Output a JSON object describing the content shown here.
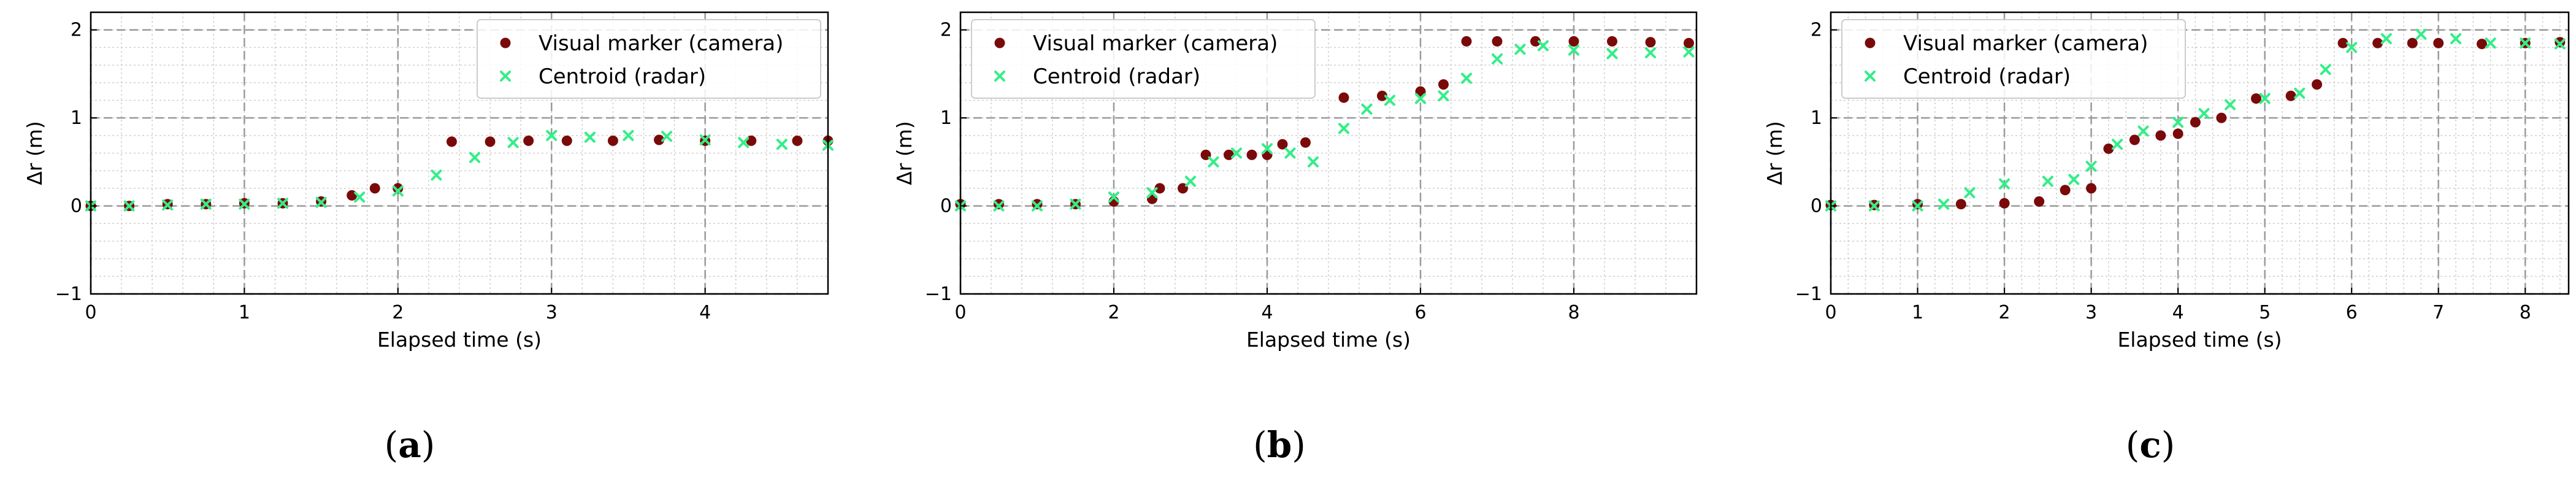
{
  "figure": {
    "colors": {
      "camera": "#7a0a0a",
      "radar": "#33ee88",
      "major_grid": "#9a9a9a",
      "minor_grid": "#cfcfcf"
    },
    "legend": {
      "camera_label": "Visual marker (camera)",
      "radar_label": "Centroid (radar)",
      "placement": "top-right"
    }
  },
  "chart_data": [
    {
      "type": "scatter",
      "caption": "a",
      "xlabel": "Elapsed time (s)",
      "ylabel": "Δr (m)",
      "xlim": [
        0,
        4.8
      ],
      "ylim": [
        -1,
        2.2
      ],
      "xticks": [
        0,
        1,
        2,
        3,
        4
      ],
      "yticks": [
        -1,
        0,
        1,
        2
      ],
      "grid": true,
      "legend_position": "top-right",
      "series": [
        {
          "name": "Visual marker (camera)",
          "marker": "circle",
          "points": [
            [
              0,
              0
            ],
            [
              0.25,
              0
            ],
            [
              0.5,
              0.02
            ],
            [
              0.75,
              0.02
            ],
            [
              1.0,
              0.03
            ],
            [
              1.25,
              0.03
            ],
            [
              1.5,
              0.05
            ],
            [
              1.7,
              0.12
            ],
            [
              1.85,
              0.2
            ],
            [
              2.0,
              0.2
            ],
            [
              2.35,
              0.73
            ],
            [
              2.6,
              0.73
            ],
            [
              2.85,
              0.74
            ],
            [
              3.1,
              0.74
            ],
            [
              3.4,
              0.74
            ],
            [
              3.7,
              0.75
            ],
            [
              4.0,
              0.74
            ],
            [
              4.3,
              0.74
            ],
            [
              4.6,
              0.74
            ],
            [
              4.8,
              0.74
            ]
          ]
        },
        {
          "name": "Centroid (radar)",
          "marker": "x",
          "points": [
            [
              0,
              0
            ],
            [
              0.25,
              0
            ],
            [
              0.5,
              0.01
            ],
            [
              0.75,
              0.02
            ],
            [
              1.0,
              0.02
            ],
            [
              1.25,
              0.03
            ],
            [
              1.5,
              0.04
            ],
            [
              1.75,
              0.1
            ],
            [
              2.0,
              0.17
            ],
            [
              2.25,
              0.35
            ],
            [
              2.5,
              0.55
            ],
            [
              2.75,
              0.72
            ],
            [
              3.0,
              0.8
            ],
            [
              3.25,
              0.78
            ],
            [
              3.5,
              0.8
            ],
            [
              3.75,
              0.79
            ],
            [
              4.0,
              0.75
            ],
            [
              4.25,
              0.72
            ],
            [
              4.5,
              0.7
            ],
            [
              4.8,
              0.69
            ]
          ]
        }
      ]
    },
    {
      "type": "scatter",
      "caption": "b",
      "xlabel": "Elapsed time (s)",
      "ylabel": "Δr (m)",
      "xlim": [
        0,
        9.6
      ],
      "ylim": [
        -1,
        2.2
      ],
      "xticks": [
        0,
        2,
        4,
        6,
        8
      ],
      "yticks": [
        -1,
        0,
        1,
        2
      ],
      "grid": true,
      "legend_position": "top-left",
      "series": [
        {
          "name": "Visual marker (camera)",
          "marker": "circle",
          "points": [
            [
              0,
              0.02
            ],
            [
              0.5,
              0.02
            ],
            [
              1.0,
              0.02
            ],
            [
              1.5,
              0.02
            ],
            [
              2.0,
              0.05
            ],
            [
              2.5,
              0.08
            ],
            [
              2.6,
              0.2
            ],
            [
              2.9,
              0.2
            ],
            [
              3.2,
              0.58
            ],
            [
              3.5,
              0.58
            ],
            [
              3.8,
              0.58
            ],
            [
              4.0,
              0.58
            ],
            [
              4.2,
              0.7
            ],
            [
              4.5,
              0.72
            ],
            [
              5.0,
              1.23
            ],
            [
              5.5,
              1.25
            ],
            [
              6.0,
              1.3
            ],
            [
              6.3,
              1.38
            ],
            [
              6.6,
              1.87
            ],
            [
              7.0,
              1.87
            ],
            [
              7.5,
              1.87
            ],
            [
              8.0,
              1.87
            ],
            [
              8.5,
              1.87
            ],
            [
              9.0,
              1.86
            ],
            [
              9.5,
              1.85
            ]
          ]
        },
        {
          "name": "Centroid (radar)",
          "marker": "x",
          "points": [
            [
              0,
              0
            ],
            [
              0.5,
              0
            ],
            [
              1.0,
              0
            ],
            [
              1.5,
              0.02
            ],
            [
              2.0,
              0.1
            ],
            [
              2.5,
              0.15
            ],
            [
              3.0,
              0.28
            ],
            [
              3.3,
              0.5
            ],
            [
              3.6,
              0.6
            ],
            [
              4.0,
              0.65
            ],
            [
              4.3,
              0.6
            ],
            [
              4.6,
              0.5
            ],
            [
              5.0,
              0.88
            ],
            [
              5.3,
              1.1
            ],
            [
              5.6,
              1.2
            ],
            [
              6.0,
              1.22
            ],
            [
              6.3,
              1.25
            ],
            [
              6.6,
              1.45
            ],
            [
              7.0,
              1.67
            ],
            [
              7.3,
              1.78
            ],
            [
              7.6,
              1.82
            ],
            [
              8.0,
              1.77
            ],
            [
              8.5,
              1.73
            ],
            [
              9.0,
              1.74
            ],
            [
              9.5,
              1.75
            ]
          ]
        }
      ]
    },
    {
      "type": "scatter",
      "caption": "c",
      "xlabel": "Elapsed time (s)",
      "ylabel": "Δr (m)",
      "xlim": [
        0,
        8.5
      ],
      "ylim": [
        -1,
        2.2
      ],
      "xticks": [
        0,
        1,
        2,
        3,
        4,
        5,
        6,
        7,
        8
      ],
      "yticks": [
        -1,
        0,
        1,
        2
      ],
      "grid": true,
      "legend_position": "top-left",
      "series": [
        {
          "name": "Visual marker (camera)",
          "marker": "circle",
          "points": [
            [
              0,
              0.01
            ],
            [
              0.5,
              0.01
            ],
            [
              1.0,
              0.02
            ],
            [
              1.5,
              0.02
            ],
            [
              2.0,
              0.03
            ],
            [
              2.4,
              0.05
            ],
            [
              2.7,
              0.18
            ],
            [
              3.0,
              0.2
            ],
            [
              3.2,
              0.65
            ],
            [
              3.5,
              0.75
            ],
            [
              3.8,
              0.8
            ],
            [
              4.0,
              0.82
            ],
            [
              4.2,
              0.95
            ],
            [
              4.5,
              1.0
            ],
            [
              4.9,
              1.22
            ],
            [
              5.3,
              1.25
            ],
            [
              5.6,
              1.38
            ],
            [
              5.9,
              1.85
            ],
            [
              6.3,
              1.85
            ],
            [
              6.7,
              1.85
            ],
            [
              7.0,
              1.85
            ],
            [
              7.5,
              1.84
            ],
            [
              8.0,
              1.85
            ],
            [
              8.4,
              1.86
            ]
          ]
        },
        {
          "name": "Centroid (radar)",
          "marker": "x",
          "points": [
            [
              0,
              0
            ],
            [
              0.5,
              0
            ],
            [
              1.0,
              0
            ],
            [
              1.3,
              0.02
            ],
            [
              1.6,
              0.15
            ],
            [
              2.0,
              0.25
            ],
            [
              2.5,
              0.28
            ],
            [
              2.8,
              0.3
            ],
            [
              3.0,
              0.45
            ],
            [
              3.3,
              0.7
            ],
            [
              3.6,
              0.85
            ],
            [
              4.0,
              0.95
            ],
            [
              4.3,
              1.05
            ],
            [
              4.6,
              1.15
            ],
            [
              5.0,
              1.22
            ],
            [
              5.4,
              1.28
            ],
            [
              5.7,
              1.55
            ],
            [
              6.0,
              1.8
            ],
            [
              6.4,
              1.9
            ],
            [
              6.8,
              1.95
            ],
            [
              7.2,
              1.9
            ],
            [
              7.6,
              1.85
            ],
            [
              8.0,
              1.85
            ],
            [
              8.4,
              1.84
            ]
          ]
        }
      ]
    }
  ]
}
